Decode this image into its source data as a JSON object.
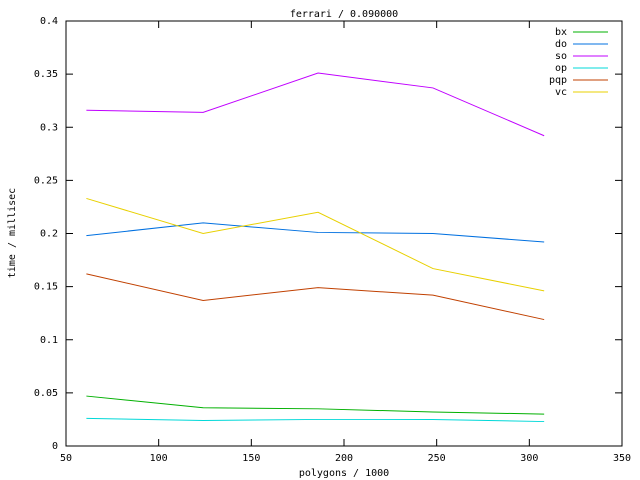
{
  "chart_data": {
    "type": "line",
    "title": "ferrari / 0.090000",
    "x_label": "polygons / 1000",
    "y_label": "time / millisec",
    "x": [
      61,
      124,
      186,
      248,
      308
    ],
    "series": [
      {
        "name": "bx",
        "color": "#00b000",
        "values": [
          0.047,
          0.036,
          0.035,
          0.032,
          0.03
        ]
      },
      {
        "name": "do",
        "color": "#0070e0",
        "values": [
          0.198,
          0.21,
          0.201,
          0.2,
          0.192
        ]
      },
      {
        "name": "so",
        "color": "#c000ff",
        "values": [
          0.316,
          0.314,
          0.351,
          0.337,
          0.292
        ]
      },
      {
        "name": "op",
        "color": "#00d8d8",
        "values": [
          0.026,
          0.024,
          0.025,
          0.025,
          0.023
        ]
      },
      {
        "name": "pqp",
        "color": "#c04000",
        "values": [
          0.162,
          0.137,
          0.149,
          0.142,
          0.119
        ]
      },
      {
        "name": "vc",
        "color": "#e8d000",
        "values": [
          0.233,
          0.2,
          0.22,
          0.167,
          0.146
        ]
      }
    ],
    "xlim": [
      50,
      350
    ],
    "xticks": [
      50,
      100,
      150,
      200,
      250,
      300,
      350
    ],
    "ylim": [
      0,
      0.4
    ],
    "yticks": [
      0,
      0.05,
      0.1,
      0.15,
      0.2,
      0.25,
      0.3,
      0.35,
      0.4
    ],
    "legend": "top-right",
    "grid": false
  }
}
